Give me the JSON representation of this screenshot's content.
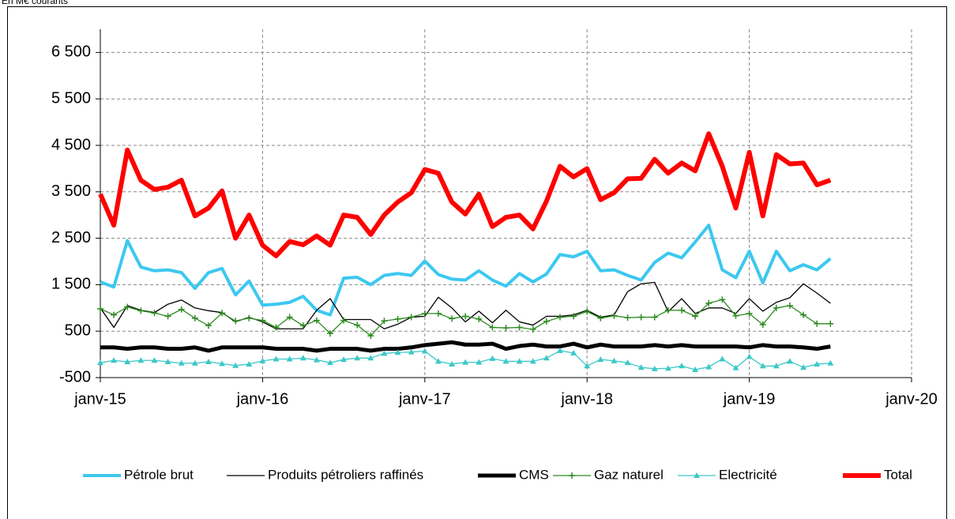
{
  "chart_data": {
    "type": "line",
    "subtitle": "En M€ courants",
    "x": [
      "2015-01",
      "2015-02",
      "2015-03",
      "2015-04",
      "2015-05",
      "2015-06",
      "2015-07",
      "2015-08",
      "2015-09",
      "2015-10",
      "2015-11",
      "2015-12",
      "2016-01",
      "2016-02",
      "2016-03",
      "2016-04",
      "2016-05",
      "2016-06",
      "2016-07",
      "2016-08",
      "2016-09",
      "2016-10",
      "2016-11",
      "2016-12",
      "2017-01",
      "2017-02",
      "2017-03",
      "2017-04",
      "2017-05",
      "2017-06",
      "2017-07",
      "2017-08",
      "2017-09",
      "2017-10",
      "2017-11",
      "2017-12",
      "2018-01",
      "2018-02",
      "2018-03",
      "2018-04",
      "2018-05",
      "2018-06",
      "2018-07",
      "2018-08",
      "2018-09",
      "2018-10",
      "2018-11",
      "2018-12",
      "2019-01",
      "2019-02",
      "2019-03",
      "2019-04",
      "2019-05",
      "2019-06",
      "2019-07"
    ],
    "xlim": [
      "2015-01",
      "2020-01"
    ],
    "xticks": [
      {
        "value": "2015-01",
        "label": "janv-15"
      },
      {
        "value": "2016-01",
        "label": "janv-16"
      },
      {
        "value": "2017-01",
        "label": "janv-17"
      },
      {
        "value": "2018-01",
        "label": "janv-18"
      },
      {
        "value": "2019-01",
        "label": "janv-19"
      },
      {
        "value": "2020-01",
        "label": "janv-20"
      }
    ],
    "ylim": [
      -500,
      7000
    ],
    "yticks": [
      -500,
      500,
      {
        "value": 1500,
        "label": "1 500"
      },
      {
        "value": 2500,
        "label": "2 500"
      },
      {
        "value": 3500,
        "label": "3 500"
      },
      {
        "value": 4500,
        "label": "4 500"
      },
      {
        "value": 5500,
        "label": "5 500"
      },
      {
        "value": 6500,
        "label": "6 500"
      }
    ],
    "grid": true,
    "legend": "bottom",
    "series": [
      {
        "name": "Pétrole brut",
        "color": "#3cc8f0",
        "width": 4,
        "marker": null,
        "values": [
          1560,
          1450,
          2450,
          1880,
          1800,
          1820,
          1760,
          1420,
          1760,
          1850,
          1280,
          1580,
          1060,
          1080,
          1120,
          1250,
          950,
          850,
          1640,
          1660,
          1500,
          1700,
          1740,
          1700,
          2010,
          1720,
          1620,
          1600,
          1800,
          1600,
          1470,
          1740,
          1560,
          1730,
          2150,
          2100,
          2220,
          1800,
          1820,
          1700,
          1600,
          1980,
          2180,
          2080,
          2420,
          2780,
          1820,
          1650,
          2220,
          1540,
          2220,
          1800,
          1930,
          1820,
          2060
        ]
      },
      {
        "name": "Produits pétroliers raffinés",
        "color": "#000000",
        "width": 1.3,
        "marker": null,
        "values": [
          1000,
          580,
          1050,
          950,
          900,
          1080,
          1170,
          1000,
          940,
          900,
          700,
          800,
          700,
          550,
          550,
          550,
          950,
          1200,
          750,
          750,
          750,
          550,
          650,
          800,
          820,
          1230,
          1000,
          700,
          930,
          680,
          950,
          700,
          630,
          820,
          820,
          850,
          950,
          800,
          850,
          1350,
          1520,
          1550,
          920,
          1200,
          880,
          1000,
          1000,
          880,
          1200,
          930,
          1120,
          1220,
          1520,
          1320,
          1100
        ]
      },
      {
        "name": "CMS",
        "color": "#000000",
        "width": 5,
        "marker": null,
        "values": [
          150,
          150,
          120,
          150,
          150,
          120,
          120,
          150,
          80,
          150,
          150,
          150,
          150,
          120,
          120,
          120,
          80,
          120,
          120,
          120,
          80,
          120,
          120,
          150,
          200,
          230,
          260,
          210,
          210,
          230,
          120,
          180,
          210,
          170,
          170,
          230,
          150,
          210,
          170,
          170,
          170,
          200,
          170,
          200,
          170,
          170,
          170,
          170,
          150,
          200,
          170,
          170,
          150,
          120,
          170
        ]
      },
      {
        "name": "Gaz naturel",
        "color": "#2e8b22",
        "width": 1.3,
        "marker": "plus",
        "values": [
          980,
          850,
          1020,
          940,
          890,
          820,
          970,
          780,
          620,
          890,
          720,
          780,
          730,
          580,
          800,
          620,
          730,
          450,
          730,
          630,
          400,
          720,
          760,
          800,
          880,
          880,
          770,
          820,
          760,
          580,
          570,
          580,
          540,
          710,
          800,
          820,
          920,
          780,
          830,
          790,
          800,
          800,
          950,
          950,
          820,
          1100,
          1180,
          830,
          880,
          640,
          1000,
          1050,
          850,
          660,
          660
        ]
      },
      {
        "name": "Electricité",
        "color": "#3cc8c8",
        "width": 1.3,
        "marker": "triangle",
        "values": [
          -180,
          -130,
          -160,
          -130,
          -130,
          -160,
          -190,
          -190,
          -160,
          -200,
          -240,
          -210,
          -140,
          -100,
          -100,
          -80,
          -120,
          -180,
          -110,
          -80,
          -80,
          20,
          40,
          50,
          70,
          -150,
          -210,
          -170,
          -170,
          -90,
          -150,
          -150,
          -150,
          -80,
          80,
          30,
          -250,
          -110,
          -140,
          -180,
          -280,
          -310,
          -300,
          -250,
          -330,
          -270,
          -100,
          -290,
          -50,
          -250,
          -250,
          -150,
          -280,
          -210,
          -190
        ]
      },
      {
        "name": "Total",
        "color": "#ff0000",
        "width": 6,
        "marker": null,
        "values": [
          3450,
          2780,
          4400,
          3750,
          3550,
          3600,
          3750,
          2980,
          3150,
          3520,
          2500,
          3000,
          2350,
          2120,
          2430,
          2360,
          2550,
          2350,
          3000,
          2950,
          2580,
          3000,
          3280,
          3480,
          3980,
          3900,
          3280,
          3020,
          3450,
          2750,
          2950,
          3000,
          2700,
          3300,
          4050,
          3820,
          4000,
          3330,
          3480,
          3780,
          3790,
          4200,
          3900,
          4120,
          3950,
          4750,
          4050,
          3150,
          4350,
          2980,
          4300,
          4100,
          4120,
          3650,
          3750
        ]
      }
    ]
  }
}
